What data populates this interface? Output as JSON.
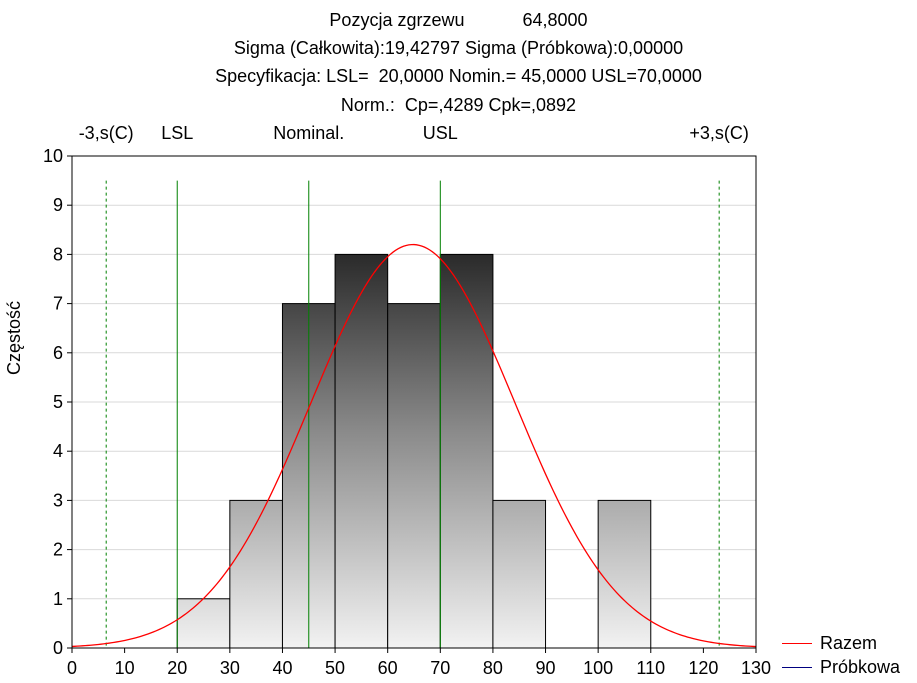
{
  "header": {
    "line1_label": "Pozycja zgrzewu",
    "line1_value": "64,8000",
    "line2": "Sigma (Całkowita):19,42797 Sigma (Próbkowa):0,00000",
    "line3": "Specyfikacja: LSL=  20,0000 Nomin.= 45,0000 USL=70,0000",
    "line4": "Norm.:  Cp=,4289 Cpk=,0892"
  },
  "chart_data": {
    "type": "bar",
    "subtype": "histogram",
    "ylabel": "Częstość",
    "xlim": [
      0,
      130
    ],
    "ylim": [
      0,
      10
    ],
    "x_ticks": [
      0,
      10,
      20,
      30,
      40,
      50,
      60,
      70,
      80,
      90,
      100,
      110,
      120,
      130
    ],
    "y_ticks": [
      0,
      1,
      2,
      3,
      4,
      5,
      6,
      7,
      8,
      9,
      10
    ],
    "bins": [
      {
        "from": 20,
        "to": 30,
        "count": 1
      },
      {
        "from": 30,
        "to": 40,
        "count": 3
      },
      {
        "from": 40,
        "to": 50,
        "count": 7
      },
      {
        "from": 50,
        "to": 60,
        "count": 8
      },
      {
        "from": 60,
        "to": 70,
        "count": 7
      },
      {
        "from": 70,
        "to": 80,
        "count": 8
      },
      {
        "from": 80,
        "to": 90,
        "count": 3
      },
      {
        "from": 90,
        "to": 100,
        "count": 0
      },
      {
        "from": 100,
        "to": 110,
        "count": 3
      }
    ],
    "normal_curve": {
      "name": "Razem",
      "mean": 64.8,
      "sigma": 19.42797,
      "peak": 8.2,
      "color": "#ff0000"
    },
    "reference_lines": [
      {
        "label": "-3,s(C)",
        "x": 6.5,
        "style": "dashed",
        "color": "#008000"
      },
      {
        "label": "LSL",
        "x": 20,
        "style": "solid",
        "color": "#008000"
      },
      {
        "label": "Nominal.",
        "x": 45,
        "style": "solid",
        "color": "#008000"
      },
      {
        "label": "USL",
        "x": 70,
        "style": "solid",
        "color": "#008000"
      },
      {
        "label": "+3,s(C)",
        "x": 123,
        "style": "dashed",
        "color": "#008000"
      }
    ],
    "reference_line_top": 9.5,
    "legend": [
      {
        "name": "Razem",
        "color": "#ff0000"
      },
      {
        "name": "Próbkowa",
        "color": "#000080"
      }
    ],
    "legend_position": "bottom-right",
    "grid": true
  }
}
